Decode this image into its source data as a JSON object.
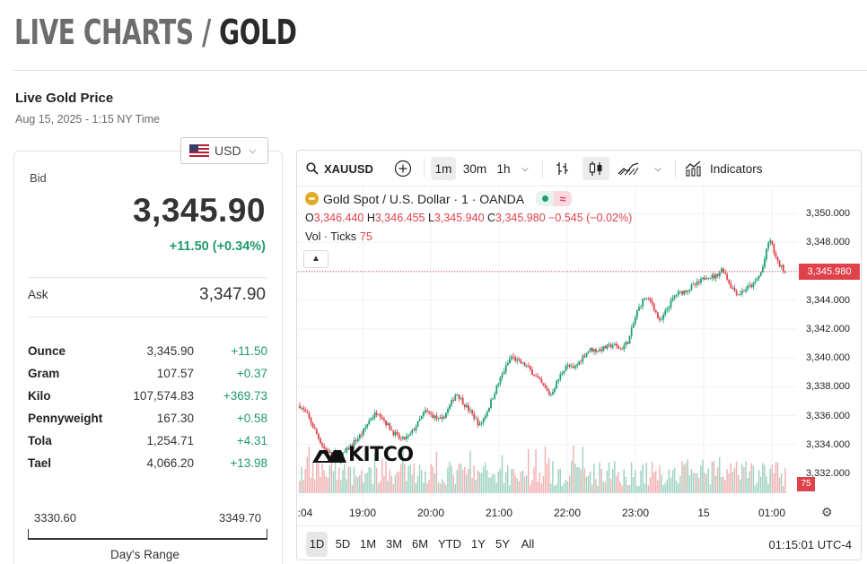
{
  "page": {
    "title_prefix": "LIVE CHARTS /",
    "title_main": "GOLD",
    "live_title": "Live Gold Price",
    "live_time": "Aug 15, 2025 - 1:15 NY Time"
  },
  "currency": {
    "selected": "USD",
    "icon": "us-flag-icon"
  },
  "quote": {
    "bid_label": "Bid",
    "bid": "3,345.90",
    "change": "+11.50 (+0.34%)",
    "ask_label": "Ask",
    "ask": "3,347.90"
  },
  "units": [
    {
      "name": "Ounce",
      "value": "3,345.90",
      "change": "+11.50"
    },
    {
      "name": "Gram",
      "value": "107.57",
      "change": "+0.37"
    },
    {
      "name": "Kilo",
      "value": "107,574.83",
      "change": "+369.73"
    },
    {
      "name": "Pennyweight",
      "value": "167.30",
      "change": "+0.58"
    },
    {
      "name": "Tola",
      "value": "1,254.71",
      "change": "+4.31"
    },
    {
      "name": "Tael",
      "value": "4,066.20",
      "change": "+13.98"
    }
  ],
  "days_range": {
    "low": "3330.60",
    "high": "3349.70",
    "label": "Day's Range"
  },
  "chart_widget": {
    "symbol": "XAUUSD",
    "intervals": [
      "1m",
      "30m",
      "1h"
    ],
    "active_interval": "1m",
    "indicators_label": "Indicators",
    "legend_title": "Gold Spot / U.S. Dollar · 1 · OANDA",
    "ohlc": {
      "o_key": "O",
      "o": "3,346.440",
      "h_key": "H",
      "h": "3,346.455",
      "l_key": "L",
      "l": "3,345.940",
      "c_key": "C",
      "c": "3,345.980",
      "chg": "−0.545 (−0.02%)"
    },
    "volume_label": "Vol · Ticks",
    "volume_value": "75",
    "last_price_tag": "3,345.980",
    "volume_tag": "75",
    "watermark": "KITCO",
    "ranges": [
      "1D",
      "5D",
      "1M",
      "3M",
      "6M",
      "YTD",
      "1Y",
      "5Y",
      "All"
    ],
    "active_range": "1D",
    "clock": "01:15:01 UTC-4",
    "colors": {
      "up": "#1e9f72",
      "down": "#e0424b",
      "up_volume": "#9fd3c2",
      "down_volume": "#f0b2b3"
    }
  },
  "chart_data": {
    "type": "candlestick",
    "title": "Gold Spot / U.S. Dollar · 1 · OANDA",
    "y_ticks": [
      "3,350.000",
      "3,348.000",
      "3,346.000",
      "3,344.000",
      "3,342.000",
      "3,340.000",
      "3,338.000",
      "3,336.000",
      "3,334.000",
      "3,332.000"
    ],
    "x_ticks": [
      ":04",
      "19:00",
      "20:00",
      "21:00",
      "22:00",
      "23:00",
      "15",
      "01:00"
    ],
    "ylim": [
      3331.0,
      3351.0
    ],
    "last_price": 3345.98,
    "series": [
      {
        "name": "close_path",
        "values": [
          3336.7,
          3336.0,
          3334.9,
          3333.8,
          3333.3,
          3333.0,
          3333.6,
          3334.2,
          3334.8,
          3335.8,
          3336.3,
          3335.5,
          3334.8,
          3334.3,
          3334.6,
          3335.4,
          3336.3,
          3336.0,
          3335.6,
          3336.5,
          3337.6,
          3336.8,
          3336.1,
          3335.3,
          3336.4,
          3337.8,
          3339.0,
          3340.1,
          3339.7,
          3339.4,
          3338.8,
          3338.1,
          3337.4,
          3338.5,
          3339.5,
          3339.2,
          3340.0,
          3340.6,
          3340.5,
          3340.7,
          3340.9,
          3340.6,
          3341.2,
          3343.1,
          3344.2,
          3343.8,
          3342.4,
          3343.5,
          3344.4,
          3344.6,
          3344.9,
          3345.2,
          3345.7,
          3345.6,
          3346.2,
          3345.0,
          3344.4,
          3344.8,
          3345.1,
          3346.0,
          3348.3,
          3346.6,
          3345.98
        ]
      }
    ],
    "volume_label": "Vol · Ticks"
  }
}
